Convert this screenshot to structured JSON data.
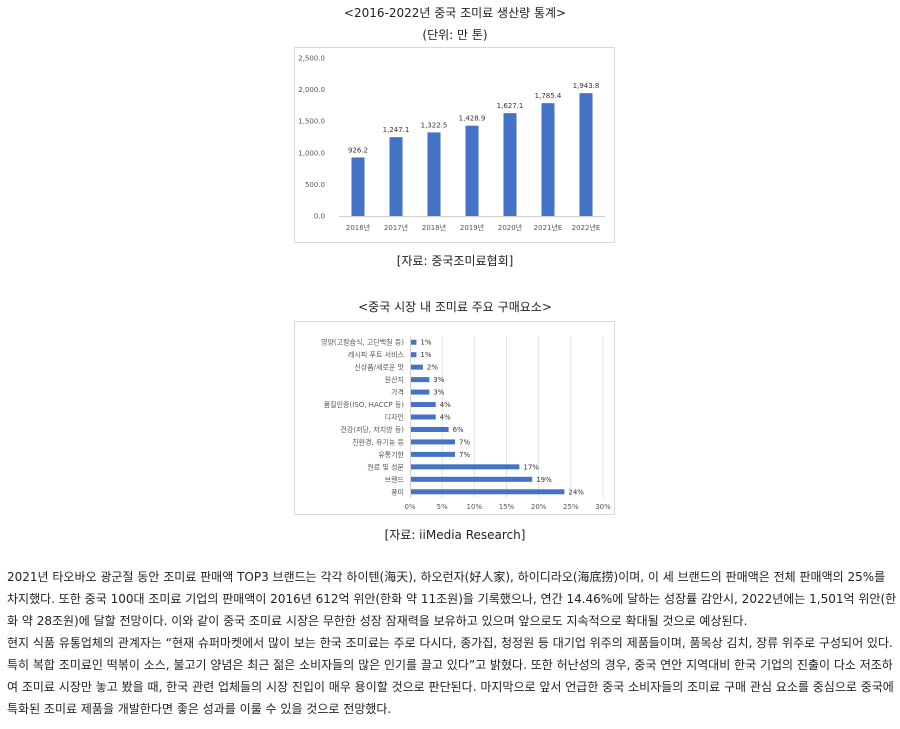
{
  "chart1": {
    "title": "<2016-2022년 중국 조미료 생산량 통계>",
    "unit": "(단위: 만 톤)",
    "source": "[자료: 중국조미료협회]",
    "chart_data": {
      "type": "bar",
      "categories": [
        "2016년",
        "2017년",
        "2018년",
        "2019년",
        "2020년",
        "2021년E",
        "2022년E"
      ],
      "values": [
        926.2,
        1247.1,
        1322.5,
        1428.9,
        1627.1,
        1785.4,
        1943.8
      ],
      "value_labels": [
        "926.2",
        "1,247.1",
        "1,322.5",
        "1,428.9",
        "1,627.1",
        "1,785.4",
        "1,943.8"
      ],
      "ylim": [
        0,
        2500
      ],
      "yticks": [
        "0.0",
        "500.0",
        "1,000.0",
        "1,500.0",
        "2,000.0",
        "2,500.0"
      ],
      "grid": false,
      "color": "#4472c4"
    }
  },
  "chart2": {
    "title": "<중국 시장 내 조미료 주요 구매요소>",
    "source": "[자료: iiMedia Research]",
    "chart_data": {
      "type": "bar",
      "orientation": "horizontal",
      "categories": [
        "영양(고칼슘식, 고단백질 등)",
        "레시피 푸트 서비스",
        "신상품/새로운 맛",
        "원산지",
        "가격",
        "품질인증(ISO, HACCP 등)",
        "디자인",
        "건강(저당, 저지방 등)",
        "친환경, 유기농 등",
        "유통기한",
        "원료 및 성분",
        "브랜드",
        "풍미"
      ],
      "values": [
        1,
        1,
        2,
        3,
        3,
        4,
        4,
        6,
        7,
        7,
        17,
        19,
        24
      ],
      "value_labels": [
        "1%",
        "1%",
        "2%",
        "3%",
        "3%",
        "4%",
        "4%",
        "6%",
        "7%",
        "7%",
        "17%",
        "19%",
        "24%"
      ],
      "xlim": [
        0,
        30
      ],
      "xticks": [
        "0%",
        "5%",
        "10%",
        "15%",
        "20%",
        "25%",
        "30%"
      ],
      "grid": true,
      "color": "#4472c4"
    }
  },
  "article": {
    "paragraphs": [
      "2021년 타오바오 광군절 동안 조미료 판매액 TOP3 브랜드는 각각 하이텐(海天), 하오런자(好人家), 하이디라오(海底捞)이며, 이 세 브랜드의 판매액은 전체 판매액의 25%를 차지했다. 또한 중국 100대 조미료 기업의 판매액이 2016년 612억 위안(한화 약 11조원)을 기록했으나, 연간 14.46%에 달하는 성장률 감안시, 2022년에는 1,501억 위안(한화 약 28조원)에 달할 전망이다. 이와 같이 중국 조미료 시장은 무한한 성장 잠재력을 보유하고 있으며 앞으로도 지속적으로 확대될 것으로 예상된다.",
      "현지 식품 유통업체의 관계자는 “현재 슈퍼마켓에서 많이 보는 한국 조미료는 주로 다시다, 종가집, 청정원 등 대기업 위주의 제품들이며, 품목상 김치, 장류 위주로 구성되어 있다. 특히 복합 조미료인 떡볶이 소스, 불고기 양념은 최근 젊은 소비자들의 많은 인기를 끌고 있다”고 밝혔다. 또한 허난성의 경우, 중국 연안 지역대비 한국 기업의 진출이 다소 저조하여 조미료 시장만 놓고 봤을 때, 한국 관련 업체들의 시장 진입이 매우 용이할 것으로 판단된다. 마지막으로 앞서 언급한 중국 소비자들의 조미료 구매 관심 요소를 중심으로 중국에 특화된 조미료 제품을 개발한다면 좋은 성과를 이룰 수 있을 것으로 전망했다."
    ]
  }
}
